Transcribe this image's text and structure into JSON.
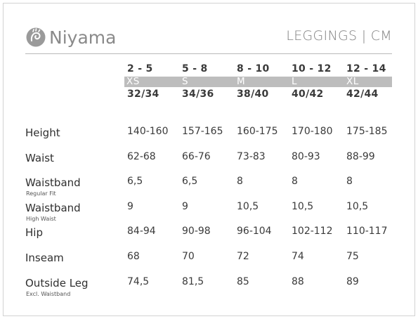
{
  "brand": {
    "name": "Niyama",
    "logo_icon": "hand-swirl-icon"
  },
  "title": "LEGGINGS | CM",
  "sizes": [
    {
      "age": "2 - 5",
      "letter": "XS",
      "eu": "32/34"
    },
    {
      "age": "5 - 8",
      "letter": "S",
      "eu": "34/36"
    },
    {
      "age": "8 - 10",
      "letter": "M",
      "eu": "38/40"
    },
    {
      "age": "10 - 12",
      "letter": "L",
      "eu": "40/42"
    },
    {
      "age": "12 - 14",
      "letter": "XL",
      "eu": "42/44"
    }
  ],
  "rows": [
    {
      "label": "Height",
      "sub": "",
      "values": [
        "140-160",
        "157-165",
        "160-175",
        "170-180",
        "175-185"
      ]
    },
    {
      "label": "Waist",
      "sub": "",
      "values": [
        "62-68",
        "66-76",
        "73-83",
        "80-93",
        "88-99"
      ]
    },
    {
      "label": "Waistband",
      "sub": "Regular Fit",
      "values": [
        "6,5",
        "6,5",
        "8",
        "8",
        "8"
      ]
    },
    {
      "label": "Waistband",
      "sub": "High Waist",
      "values": [
        "9",
        "9",
        "10,5",
        "10,5",
        "10,5"
      ]
    },
    {
      "label": "Hip",
      "sub": "",
      "values": [
        "84-94",
        "90-98",
        "96-104",
        "102-112",
        "110-117"
      ]
    },
    {
      "label": "Inseam",
      "sub": "",
      "values": [
        "68",
        "70",
        "72",
        "74",
        "75"
      ]
    },
    {
      "label": "Outside Leg",
      "sub": "Excl. Waistband",
      "values": [
        "74,5",
        "81,5",
        "85",
        "88",
        "89"
      ]
    }
  ],
  "colors": {
    "band": "#bdbdbd",
    "text": "#3a3a3a",
    "logo": "#8a8a8a"
  }
}
